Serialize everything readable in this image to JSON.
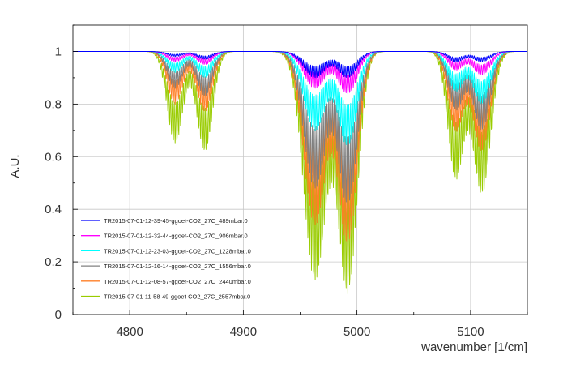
{
  "chart_data": {
    "type": "line",
    "title": "",
    "xlabel": "wavenumber [1/cm]",
    "ylabel": "A.U.",
    "xlim": [
      4750,
      5150
    ],
    "ylim": [
      0,
      1.1
    ],
    "x_ticks": [
      "4800",
      "4900",
      "5000",
      "5100"
    ],
    "x_tick_values": [
      4800,
      4900,
      5000,
      5100
    ],
    "y_ticks": [
      "0",
      "0.2",
      "0.4",
      "0.6",
      "0.8",
      "1"
    ],
    "y_tick_values": [
      0,
      0.2,
      0.4,
      0.6,
      0.8,
      1.0
    ],
    "grid": true,
    "legend_position": "lower-left",
    "bands": [
      {
        "center": 4840,
        "width": 10
      },
      {
        "center": 4866,
        "width": 10
      },
      {
        "center": 4963,
        "width": 14
      },
      {
        "center": 4992,
        "width": 12
      },
      {
        "center": 5087,
        "width": 10
      },
      {
        "center": 5110,
        "width": 11
      }
    ],
    "series": [
      {
        "name": "TR2015-07-01-12-39-45-ggoet-CO2_27C_489mbar.0",
        "color": "#0000ff",
        "min_transmission": [
          0.98,
          0.97,
          0.9,
          0.9,
          0.96,
          0.96
        ]
      },
      {
        "name": "TR2015-07-01-12-32-44-ggoet-CO2_27C_906mbar.0",
        "color": "#ff00ff",
        "min_transmission": [
          0.96,
          0.95,
          0.86,
          0.84,
          0.93,
          0.91
        ]
      },
      {
        "name": "TR2015-07-01-12-23-03-ggoet-CO2_27C_1228mbar.0",
        "color": "#00ffff",
        "min_transmission": [
          0.92,
          0.9,
          0.7,
          0.64,
          0.85,
          0.8
        ]
      },
      {
        "name": "TR2015-07-01-12-16-14-ggoet-CO2_27C_1556mbar.0",
        "color": "#808080",
        "min_transmission": [
          0.86,
          0.83,
          0.48,
          0.42,
          0.78,
          0.7
        ]
      },
      {
        "name": "TR2015-07-01-12-08-57-ggoet-CO2_27C_2440mbar.0",
        "color": "#ff7f27",
        "min_transmission": [
          0.8,
          0.77,
          0.34,
          0.27,
          0.7,
          0.62
        ]
      },
      {
        "name": "TR2015-07-01-11-58-49-ggoet-CO2_27C_2557mbar.0",
        "color": "#99cc00",
        "min_transmission": [
          0.65,
          0.62,
          0.13,
          0.09,
          0.52,
          0.46
        ]
      }
    ]
  }
}
